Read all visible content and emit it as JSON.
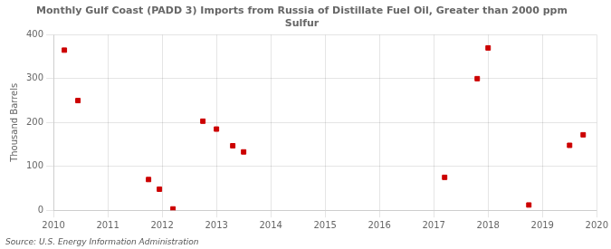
{
  "chart_data": {
    "type": "scatter",
    "title": "Monthly Gulf Coast (PADD 3) Imports from Russia of Distillate Fuel Oil, Greater than 2000 ppm\nSulfur",
    "y_label": "Thousand Barrels",
    "annotations": [
      "Source: U.S. Energy Information Administration"
    ],
    "x": [
      2010.2,
      2010.45,
      2011.75,
      2011.95,
      2012.2,
      2012.75,
      2013.0,
      2013.3,
      2013.5,
      2017.2,
      2017.8,
      2018.0,
      2018.75,
      2019.5,
      2019.75
    ],
    "values": [
      365,
      250,
      70,
      48,
      3,
      203,
      185,
      147,
      133,
      75,
      300,
      370,
      12,
      148,
      172
    ],
    "color": "#cc0000",
    "marker": "square",
    "xlim": [
      2010,
      2020
    ],
    "xticks": [
      2010,
      2011,
      2012,
      2013,
      2014,
      2015,
      2016,
      2017,
      2018,
      2019,
      2020
    ],
    "ylim": [
      0,
      400
    ],
    "yticks": [
      0,
      100,
      200,
      300,
      400
    ],
    "grid": true
  }
}
